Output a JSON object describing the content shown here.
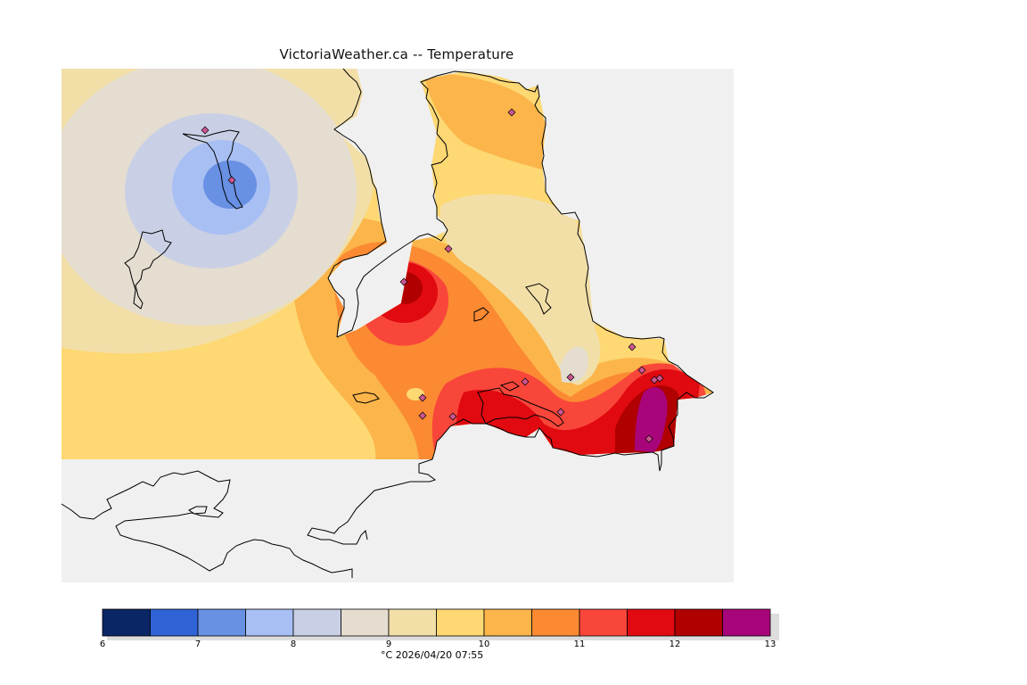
{
  "title": "VictoriaWeather.ca -- Temperature",
  "footer": {
    "unit": "°C",
    "datetime": "2026/04/20 07:55"
  },
  "colorbar": {
    "ticks": [
      "6",
      "7",
      "8",
      "9",
      "10",
      "11",
      "12",
      "13"
    ],
    "colors": [
      "#0b2665",
      "#2f63d6",
      "#6890e3",
      "#a8bff3",
      "#c9d0e6",
      "#e4ddd0",
      "#f2dfa8",
      "#fdd873",
      "#fbb54a",
      "#fb8a33",
      "#f9463a",
      "#e00a10",
      "#b00000",
      "#a8057a"
    ]
  },
  "legend_colors": {
    "land_outside": "#f0f0f0",
    "station": "#cc5590"
  }
}
